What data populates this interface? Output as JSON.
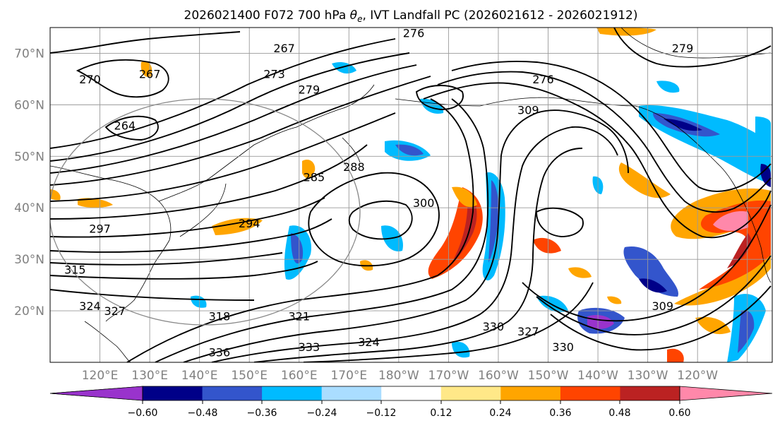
{
  "title": {
    "prefix": "2026021400 F072 700 hPa ",
    "theta_symbol": "θ",
    "theta_subscript": "e",
    "suffix": ", IVT Landfall PC (2026021612 - 2026021912)"
  },
  "map": {
    "lat_range": [
      10,
      75
    ],
    "lon_range_east": [
      110,
      255
    ],
    "lat_labels": [
      "20°N",
      "30°N",
      "40°N",
      "50°N",
      "60°N",
      "70°N"
    ],
    "lon_labels": [
      "120°E",
      "130°E",
      "140°E",
      "150°E",
      "160°E",
      "170°E",
      "180°W",
      "170°W",
      "160°W",
      "150°W",
      "140°W",
      "130°W",
      "120°W"
    ],
    "contour_labels": [
      {
        "text": "267",
        "lat": 71,
        "lon": 157
      },
      {
        "text": "267",
        "lat": 66,
        "lon": 130
      },
      {
        "text": "270",
        "lat": 65,
        "lon": 118
      },
      {
        "text": "273",
        "lat": 66,
        "lon": 155
      },
      {
        "text": "276",
        "lat": 74,
        "lon": 183
      },
      {
        "text": "276",
        "lat": 65,
        "lon": 209
      },
      {
        "text": "279",
        "lat": 63,
        "lon": 162
      },
      {
        "text": "279",
        "lat": 71,
        "lon": 237
      },
      {
        "text": "264",
        "lat": 56,
        "lon": 125
      },
      {
        "text": "285",
        "lat": 46,
        "lon": 163
      },
      {
        "text": "288",
        "lat": 48,
        "lon": 171
      },
      {
        "text": "294",
        "lat": 37,
        "lon": 150
      },
      {
        "text": "297",
        "lat": 36,
        "lon": 120
      },
      {
        "text": "300",
        "lat": 41,
        "lon": 185
      },
      {
        "text": "309",
        "lat": 59,
        "lon": 206
      },
      {
        "text": "309",
        "lat": 21,
        "lon": 233
      },
      {
        "text": "315",
        "lat": 28,
        "lon": 115
      },
      {
        "text": "318",
        "lat": 19,
        "lon": 144
      },
      {
        "text": "321",
        "lat": 19,
        "lon": 160
      },
      {
        "text": "324",
        "lat": 21,
        "lon": 118
      },
      {
        "text": "327",
        "lat": 20,
        "lon": 123
      },
      {
        "text": "327",
        "lat": 16,
        "lon": 206
      },
      {
        "text": "330",
        "lat": 17,
        "lon": 199
      },
      {
        "text": "330",
        "lat": 13,
        "lon": 213
      },
      {
        "text": "333",
        "lat": 13,
        "lon": 162
      },
      {
        "text": "336",
        "lat": 12,
        "lon": 144
      },
      {
        "text": "324",
        "lat": 14,
        "lon": 174
      }
    ]
  },
  "colorbar": {
    "ticks": [
      "−0.60",
      "−0.48",
      "−0.36",
      "−0.24",
      "−0.12",
      "0.12",
      "0.24",
      "0.36",
      "0.48",
      "0.60"
    ],
    "colors": [
      "#9933cc",
      "#000088",
      "#3355cc",
      "#00bbff",
      "#aaddff",
      "#ffffff",
      "#ffe888",
      "#ffa500",
      "#ff4400",
      "#bb2222",
      "#ff88aa"
    ],
    "extend_low_color": "#9933cc",
    "extend_high_color": "#ff88aa"
  }
}
